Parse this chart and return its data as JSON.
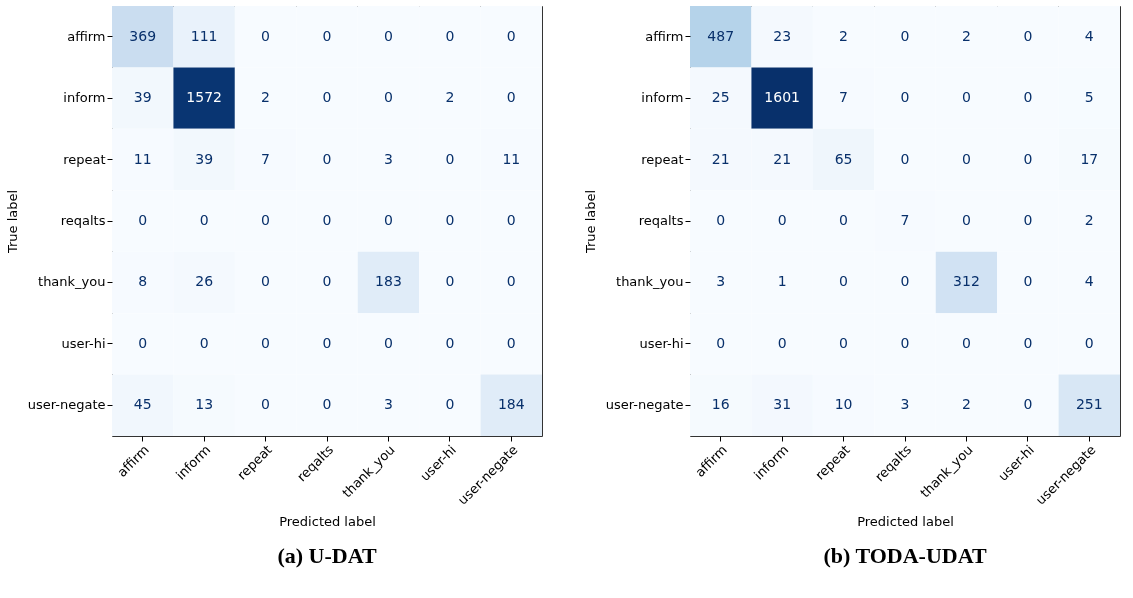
{
  "chart_data": [
    {
      "type": "heatmap",
      "title": "(a) U-DAT",
      "xlabel": "Predicted label",
      "ylabel": "True label",
      "data_labels": true,
      "categories": [
        "affirm",
        "inform",
        "repeat",
        "reqalts",
        "thank_you",
        "user-hi",
        "user-negate"
      ],
      "y_categories": [
        "affirm",
        "inform",
        "repeat",
        "reqalts",
        "thank_you",
        "user-hi",
        "user-negate"
      ],
      "cells": [
        [
          369,
          111,
          0,
          0,
          0,
          0,
          0
        ],
        [
          39,
          1572,
          2,
          0,
          0,
          2,
          0
        ],
        [
          11,
          39,
          7,
          0,
          3,
          0,
          11
        ],
        [
          0,
          0,
          0,
          0,
          0,
          0,
          0
        ],
        [
          8,
          26,
          0,
          0,
          183,
          0,
          0
        ],
        [
          0,
          0,
          0,
          0,
          0,
          0,
          0
        ],
        [
          45,
          13,
          0,
          0,
          3,
          0,
          184
        ]
      ]
    },
    {
      "type": "heatmap",
      "title": "(b) TODA-UDAT",
      "xlabel": "Predicted label",
      "ylabel": "True label",
      "data_labels": true,
      "categories": [
        "affirm",
        "inform",
        "repeat",
        "reqalts",
        "thank_you",
        "user-hi",
        "user-negate"
      ],
      "y_categories": [
        "affirm",
        "inform",
        "repeat",
        "reqalts",
        "thank_you",
        "user-hi",
        "user-negate"
      ],
      "cells": [
        [
          487,
          23,
          2,
          0,
          2,
          0,
          4
        ],
        [
          25,
          1601,
          7,
          0,
          0,
          0,
          5
        ],
        [
          21,
          21,
          65,
          0,
          0,
          0,
          17
        ],
        [
          0,
          0,
          0,
          7,
          0,
          0,
          2
        ],
        [
          3,
          1,
          0,
          0,
          312,
          0,
          4
        ],
        [
          0,
          0,
          0,
          0,
          0,
          0,
          0
        ],
        [
          16,
          31,
          10,
          3,
          2,
          0,
          251
        ]
      ]
    }
  ]
}
